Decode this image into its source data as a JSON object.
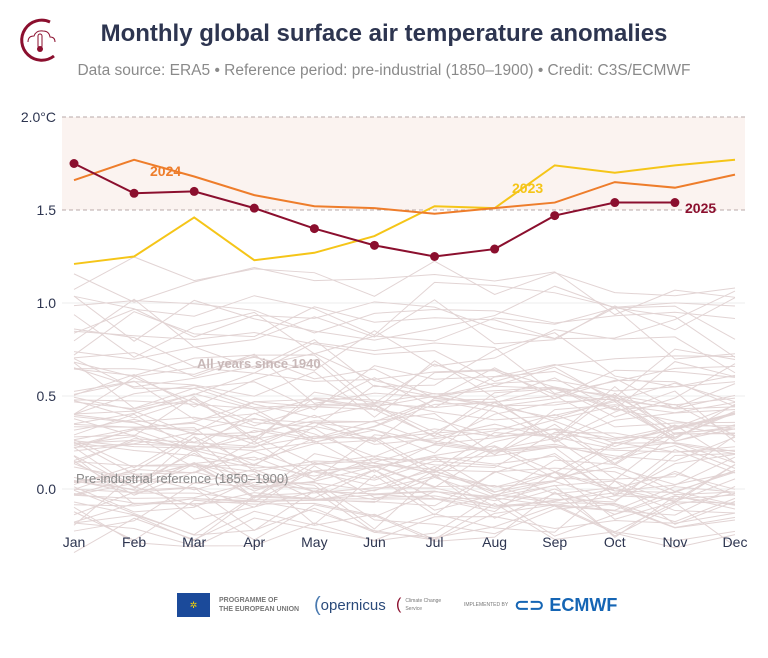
{
  "header": {
    "title": "Monthly global surface air temperature anomalies",
    "subtitle": "Data source: ERA5 • Reference period: pre-industrial (1850–1900) • Credit: C3S/ECMWF"
  },
  "chart_data": {
    "type": "line",
    "title": "Monthly global surface air temperature anomalies",
    "x": [
      "Jan",
      "Feb",
      "Mar",
      "Apr",
      "May",
      "Jun",
      "Jul",
      "Aug",
      "Sep",
      "Oct",
      "Nov",
      "Dec"
    ],
    "yticks": [
      "0.0",
      "0.5",
      "1.0",
      "1.5",
      "2.0°C"
    ],
    "ylim": [
      -0.1,
      2.0
    ],
    "reference_lines": [
      1.5,
      2.0
    ],
    "shaded_band": [
      1.5,
      2.0
    ],
    "grid": true,
    "annotations": {
      "background": "All years since 1940",
      "baseline": "Pre-industrial reference (1850–1900)"
    },
    "series": [
      {
        "name": "2023",
        "color": "#f5c518",
        "values": [
          1.21,
          1.25,
          1.46,
          1.23,
          1.27,
          1.36,
          1.52,
          1.51,
          1.74,
          1.7,
          1.74,
          1.77
        ]
      },
      {
        "name": "2024",
        "color": "#ee7d2b",
        "values": [
          1.66,
          1.77,
          1.68,
          1.58,
          1.52,
          1.51,
          1.48,
          1.51,
          1.54,
          1.65,
          1.62,
          1.69
        ]
      },
      {
        "name": "2025",
        "color": "#8b0f2e",
        "values": [
          1.75,
          1.59,
          1.6,
          1.51,
          1.4,
          1.31,
          1.25,
          1.29,
          1.47,
          1.54,
          1.54,
          null
        ]
      }
    ],
    "background_color": "#e2d4d4"
  },
  "footer": {
    "eu": "PROGRAMME OF\nTHE EUROPEAN UNION",
    "copernicus": "opernicus",
    "climate": "Climate Change Service",
    "implemented": "IMPLEMENTED BY",
    "ecmwf": "ECMWF"
  }
}
